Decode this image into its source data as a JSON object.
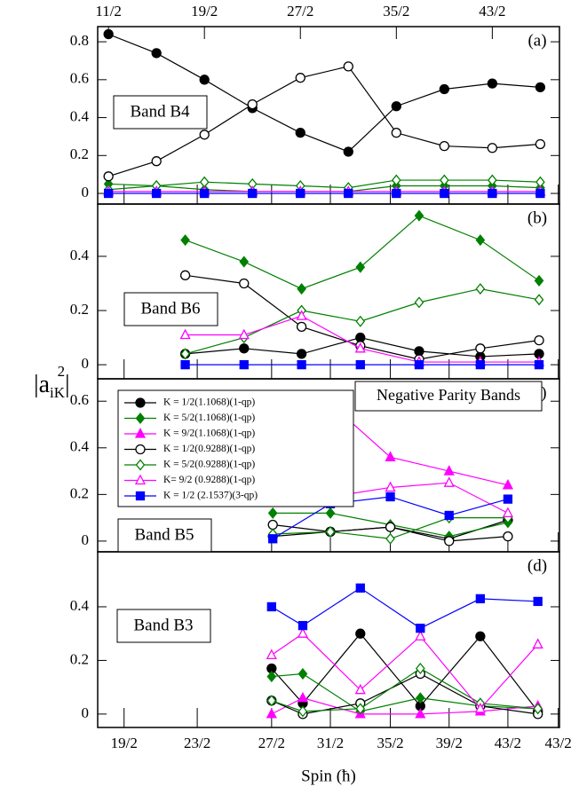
{
  "chart_data": [
    {
      "type": "line",
      "panel_label": "(a)",
      "annotation": "Band B4",
      "xlim": [
        10.1,
        48.6
      ],
      "ylim": [
        -0.056,
        0.88
      ],
      "yticks": [
        0,
        0.2,
        0.4,
        0.6,
        0.8
      ],
      "x2ticks": [
        {
          "value": 11,
          "label": "11/2"
        },
        {
          "value": 19,
          "label": "19/2"
        },
        {
          "value": 27,
          "label": "27/2"
        },
        {
          "value": 35,
          "label": "35/2"
        },
        {
          "value": 43,
          "label": "43/2"
        }
      ],
      "x": [
        11,
        15,
        19,
        23,
        27,
        31,
        35,
        39,
        43,
        47
      ],
      "series": [
        {
          "color": "#000000",
          "marker": "circle",
          "filled": true,
          "values": [
            0.84,
            0.74,
            0.6,
            0.45,
            0.32,
            0.22,
            0.46,
            0.55,
            0.58,
            0.56
          ]
        },
        {
          "color": "#008000",
          "marker": "diamond",
          "filled": true,
          "values": [
            0.05,
            0.04,
            0.02,
            0.01,
            0.01,
            0.01,
            0.04,
            0.04,
            0.04,
            0.03
          ]
        },
        {
          "color": "#000000",
          "marker": "circle",
          "filled": false,
          "values": [
            0.09,
            0.17,
            0.31,
            0.47,
            0.61,
            0.67,
            0.32,
            0.25,
            0.24,
            0.26
          ]
        },
        {
          "color": "#008000",
          "marker": "diamond",
          "filled": false,
          "values": [
            0.02,
            0.04,
            0.06,
            0.05,
            0.04,
            0.03,
            0.07,
            0.07,
            0.07,
            0.06
          ]
        },
        {
          "color": "#ff00ff",
          "marker": "triangle",
          "filled": false,
          "values": [
            0.01,
            0.01,
            0.01,
            0.01,
            0.01,
            0.01,
            0.01,
            0.01,
            0.01,
            0.01
          ]
        },
        {
          "color": "#0000ff",
          "marker": "square",
          "filled": true,
          "values": [
            0,
            0,
            0,
            0,
            0,
            0,
            0,
            0,
            0,
            0
          ]
        }
      ]
    },
    {
      "type": "line",
      "panel_label": "(b)",
      "annotation": "Band B6",
      "xlim": [
        10.1,
        48.6
      ],
      "ylim": [
        -0.052,
        0.593
      ],
      "yticks": [
        0,
        0.2,
        0.4
      ],
      "x": [
        17.4,
        22.3,
        27.1,
        32,
        36.9,
        42,
        46.9
      ],
      "series": [
        {
          "color": "#000000",
          "marker": "circle",
          "filled": true,
          "values": [
            0.04,
            0.06,
            0.04,
            0.1,
            0.05,
            0.03,
            0.04
          ]
        },
        {
          "color": "#008000",
          "marker": "diamond",
          "filled": true,
          "values": [
            0.46,
            0.38,
            0.28,
            0.36,
            0.55,
            0.46,
            0.31
          ]
        },
        {
          "color": "#000000",
          "marker": "circle",
          "filled": false,
          "values": [
            0.33,
            0.3,
            0.14,
            0.07,
            0.02,
            0.06,
            0.09
          ]
        },
        {
          "color": "#008000",
          "marker": "diamond",
          "filled": false,
          "values": [
            0.04,
            0.1,
            0.2,
            0.16,
            0.23,
            0.28,
            0.24
          ]
        },
        {
          "color": "#ff00ff",
          "marker": "triangle",
          "filled": false,
          "values": [
            0.11,
            0.11,
            0.18,
            0.06,
            0.01,
            0.01,
            0.01
          ]
        },
        {
          "color": "#0000ff",
          "marker": "square",
          "filled": true,
          "values": [
            0,
            0,
            0,
            0,
            0,
            0,
            0
          ]
        }
      ]
    },
    {
      "type": "line",
      "panel_label": "(c)",
      "annotation": "Band B5",
      "note": "Negative Parity Bands",
      "legend": "upper left",
      "xlim": [
        10.1,
        48.6
      ],
      "ylim": [
        -0.046,
        0.696
      ],
      "yticks": [
        0,
        0.2,
        0.4,
        0.6
      ],
      "x": [
        24.7,
        29.5,
        34.5,
        39.4,
        44.3
      ],
      "series": [
        {
          "name": "K = 1/2(1.1068)(1-qp)",
          "color": "#000000",
          "marker": "circle",
          "filled": true,
          "values": [
            0.02,
            0.04,
            0.06,
            0.01,
            0.09
          ]
        },
        {
          "name": "K = 5/2(1.1068)(1-qp)",
          "color": "#008000",
          "marker": "diamond",
          "filled": true,
          "values": [
            0.12,
            0.12,
            0.07,
            0.02,
            0.08
          ]
        },
        {
          "name": "K = 9/2(1.1068)(1-qp)",
          "color": "#ff00ff",
          "marker": "triangle",
          "filled": true,
          "values": [
            0.44,
            0.59,
            0.36,
            0.3,
            0.24
          ]
        },
        {
          "name": "K = 1/2(0.9288)(1-qp)",
          "color": "#000000",
          "marker": "circle",
          "filled": false,
          "values": [
            0.07,
            0.04,
            0.06,
            0.0,
            0.02
          ]
        },
        {
          "name": "K = 5/2(0.9288)(1-qp)",
          "color": "#008000",
          "marker": "diamond",
          "filled": false,
          "values": [
            0.03,
            0.04,
            0.01,
            0.1,
            0.1
          ]
        },
        {
          "name": "K= 9/2 (0.9288)(1-qp)",
          "color": "#ff00ff",
          "marker": "triangle",
          "filled": false,
          "values": [
            0.28,
            0.19,
            0.23,
            0.25,
            0.12
          ]
        },
        {
          "name": "K = 1/2 (2.1537)(3-qp)",
          "color": "#0000ff",
          "marker": "square",
          "filled": true,
          "values": [
            0.01,
            0.16,
            0.19,
            0.11,
            0.18
          ]
        }
      ]
    },
    {
      "type": "line",
      "panel_label": "(d)",
      "annotation": "Band B3",
      "xlabel": "Spin (ħ)",
      "ylabel": "|a",
      "ylabel_sub": "iK",
      "ylabel_end": "|",
      "ylabel_sup": "2",
      "xlim": [
        10.1,
        48.6
      ],
      "ylim": [
        -0.05,
        0.605
      ],
      "yticks": [
        0,
        0.2,
        0.4
      ],
      "xticks": [
        {
          "value": 12.3,
          "label": "19/2"
        },
        {
          "value": 18.4,
          "label": "23/2"
        },
        {
          "value": 24.6,
          "label": "27/2"
        },
        {
          "value": 29.5,
          "label": "31/2"
        },
        {
          "value": 34.5,
          "label": "35/2"
        },
        {
          "value": 39.4,
          "label": "39/2"
        },
        {
          "value": 44.3,
          "label": "43/2"
        },
        {
          "value": 48.5,
          "label": "43/2"
        }
      ],
      "x": [
        24.6,
        27.2,
        32,
        37,
        42,
        46.8
      ],
      "series": [
        {
          "color": "#000000",
          "marker": "circle",
          "filled": true,
          "values": [
            0.17,
            0.04,
            0.3,
            0.03,
            0.29,
            0.01
          ]
        },
        {
          "color": "#008000",
          "marker": "diamond",
          "filled": true,
          "values": [
            0.14,
            0.15,
            0.01,
            0.06,
            0.03,
            0.02
          ]
        },
        {
          "color": "#ff00ff",
          "marker": "triangle",
          "filled": true,
          "values": [
            0.0,
            0.06,
            0.0,
            0.0,
            0.01,
            0.03
          ]
        },
        {
          "color": "#000000",
          "marker": "circle",
          "filled": false,
          "values": [
            0.05,
            0.0,
            0.04,
            0.15,
            0.03,
            0.0
          ]
        },
        {
          "color": "#008000",
          "marker": "diamond",
          "filled": false,
          "values": [
            0.05,
            0.01,
            0.02,
            0.17,
            0.04,
            0.02
          ]
        },
        {
          "color": "#ff00ff",
          "marker": "triangle",
          "filled": false,
          "values": [
            0.22,
            0.3,
            0.09,
            0.29,
            0.02,
            0.26
          ]
        },
        {
          "color": "#0000ff",
          "marker": "square",
          "filled": true,
          "values": [
            0.4,
            0.33,
            0.47,
            0.32,
            0.43,
            0.42
          ]
        }
      ]
    }
  ]
}
